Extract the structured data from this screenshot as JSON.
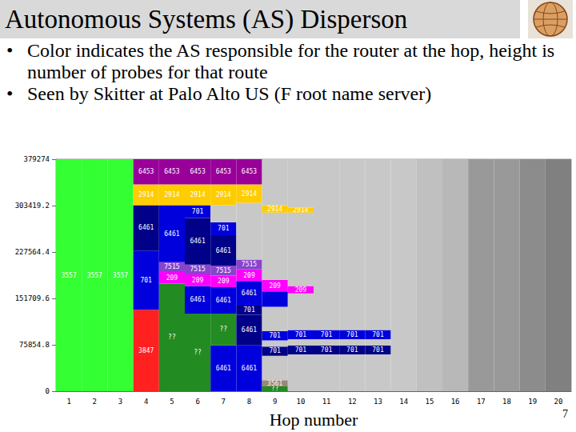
{
  "slide": {
    "title": "Autonomous Systems (AS) Disperson",
    "bullets": [
      "Color indicates the AS responsible for the router at the hop, height is number of probes for that route",
      "Seen by Skitter at Palo Alto US (F root name server)"
    ],
    "page_number": 7
  },
  "chart_data": {
    "type": "bar",
    "stacked": true,
    "grid": false,
    "x_label": "Hop number",
    "categories": [
      1,
      2,
      3,
      4,
      5,
      6,
      7,
      8,
      9,
      10,
      11,
      12,
      13,
      14,
      15,
      16,
      17,
      18,
      19,
      20
    ],
    "ylim": [
      0,
      379274
    ],
    "yticks": [
      0,
      75854.8,
      151709.6,
      227564.4,
      303419.2,
      379274
    ],
    "segments": [
      [
        {
          "label": "3557",
          "value": 379274,
          "color": "#33ff33"
        }
      ],
      [
        {
          "label": "3557",
          "value": 379274,
          "color": "#33ff33"
        }
      ],
      [
        {
          "label": "3557",
          "value": 379274,
          "color": "#33ff33"
        }
      ],
      [
        {
          "label": "3847",
          "value": 133000,
          "color": "#ff2020"
        },
        {
          "label": "701",
          "value": 97000,
          "color": "#0000dd"
        },
        {
          "label": "6461",
          "value": 74000,
          "color": "#000088"
        },
        {
          "label": "2914",
          "value": 34000,
          "color": "#ffcc00"
        },
        {
          "label": "6453",
          "value": 41274,
          "color": "#990099"
        }
      ],
      [
        {
          "label": "??",
          "value": 176000,
          "color": "#228b22"
        },
        {
          "label": "209",
          "value": 19000,
          "color": "#ff00ff"
        },
        {
          "label": "7515",
          "value": 16000,
          "color": "#8844cc"
        },
        {
          "label": "6461",
          "value": 93000,
          "color": "#0000dd"
        },
        {
          "label": "2914",
          "value": 34000,
          "color": "#ffcc00"
        },
        {
          "label": "6453",
          "value": 41274,
          "color": "#990099"
        }
      ],
      [
        {
          "label": "??",
          "value": 127000,
          "color": "#228b22"
        },
        {
          "label": "6461",
          "value": 45000,
          "color": "#0000dd"
        },
        {
          "label": "209",
          "value": 19000,
          "color": "#ff00ff"
        },
        {
          "label": "7515",
          "value": 16000,
          "color": "#8844cc"
        },
        {
          "label": "6461",
          "value": 76000,
          "color": "#000088"
        },
        {
          "label": "701",
          "value": 21000,
          "color": "#0000dd"
        },
        {
          "label": "2914",
          "value": 34000,
          "color": "#ffcc00"
        },
        {
          "label": "6453",
          "value": 41274,
          "color": "#990099"
        }
      ],
      [
        {
          "label": "6461",
          "value": 75000,
          "color": "#0000dd"
        },
        {
          "label": "??",
          "value": 52000,
          "color": "#228b22"
        },
        {
          "label": "6461",
          "value": 43000,
          "color": "#0000dd"
        },
        {
          "label": "209",
          "value": 19000,
          "color": "#ff00ff"
        },
        {
          "label": "7515",
          "value": 16000,
          "color": "#8844cc"
        },
        {
          "label": "6461",
          "value": 50000,
          "color": "#000088"
        },
        {
          "label": "701",
          "value": 21000,
          "color": "#0000dd"
        },
        {
          "value": 28000,
          "color": "#c8c8c8"
        },
        {
          "label": "2914",
          "value": 34000,
          "color": "#ffcc00"
        },
        {
          "label": "6453",
          "value": 41274,
          "color": "#990099"
        }
      ],
      [
        {
          "label": "6461",
          "value": 75000,
          "color": "#0000dd"
        },
        {
          "label": "6461",
          "value": 50000,
          "color": "#000088"
        },
        {
          "label": "701",
          "value": 15000,
          "color": "#000088"
        },
        {
          "label": "6461",
          "value": 40000,
          "color": "#0000dd"
        },
        {
          "label": "209",
          "value": 19000,
          "color": "#ff00ff"
        },
        {
          "label": "7515",
          "value": 16000,
          "color": "#8844cc"
        },
        {
          "value": 93000,
          "color": "#c8c8c8"
        },
        {
          "label": "2914",
          "value": 30000,
          "color": "#ffcc00"
        },
        {
          "label": "6453",
          "value": 41274,
          "color": "#990099"
        }
      ],
      [
        {
          "label": "??",
          "value": 8000,
          "color": "#228b22"
        },
        {
          "label": "3561",
          "value": 10000,
          "color": "#998877"
        },
        {
          "value": 40000,
          "color": "#c8c8c8"
        },
        {
          "label": "701",
          "value": 15000,
          "color": "#000088"
        },
        {
          "value": 10000,
          "color": "#c8c8c8"
        },
        {
          "label": "701",
          "value": 15000,
          "color": "#0000dd"
        },
        {
          "value": 40000,
          "color": "#c8c8c8"
        },
        {
          "value": 25000,
          "color": "#0000dd"
        },
        {
          "label": "209",
          "value": 19000,
          "color": "#ff00ff"
        },
        {
          "value": 110000,
          "color": "#c8c8c8"
        },
        {
          "label": "2914",
          "value": 12000,
          "color": "#ffcc00"
        },
        {
          "value": 75274,
          "color": "#c8c8c8"
        }
      ],
      [
        {
          "value": 60000,
          "color": "#c8c8c8"
        },
        {
          "label": "701",
          "value": 15000,
          "color": "#000088"
        },
        {
          "value": 10000,
          "color": "#c8c8c8"
        },
        {
          "label": "701",
          "value": 15000,
          "color": "#0000dd"
        },
        {
          "value": 60000,
          "color": "#c8c8c8"
        },
        {
          "label": "209",
          "value": 12000,
          "color": "#ff00ff"
        },
        {
          "value": 120000,
          "color": "#c8c8c8"
        },
        {
          "label": "2914",
          "value": 8000,
          "color": "#ffcc00"
        },
        {
          "value": 79274,
          "color": "#c8c8c8"
        }
      ],
      [
        {
          "value": 60000,
          "color": "#c8c8c8"
        },
        {
          "label": "701",
          "value": 15000,
          "color": "#000088"
        },
        {
          "value": 10000,
          "color": "#c8c8c8"
        },
        {
          "label": "701",
          "value": 15000,
          "color": "#0000dd"
        },
        {
          "value": 279274,
          "color": "#c8c8c8"
        }
      ],
      [
        {
          "value": 60000,
          "color": "#c8c8c8"
        },
        {
          "label": "701",
          "value": 15000,
          "color": "#000088"
        },
        {
          "value": 10000,
          "color": "#c8c8c8"
        },
        {
          "label": "701",
          "value": 15000,
          "color": "#0000dd"
        },
        {
          "value": 279274,
          "color": "#c8c8c8"
        }
      ],
      [
        {
          "value": 60000,
          "color": "#c8c8c8"
        },
        {
          "label": "701",
          "value": 15000,
          "color": "#000088"
        },
        {
          "value": 10000,
          "color": "#c8c8c8"
        },
        {
          "label": "701",
          "value": 15000,
          "color": "#0000dd"
        },
        {
          "value": 279274,
          "color": "#c8c8c8"
        }
      ],
      [
        {
          "value": 379274,
          "color": "#c8c8c8"
        }
      ],
      [
        {
          "value": 379274,
          "color": "#c0c0c0"
        }
      ],
      [
        {
          "value": 379274,
          "color": "#b8b8b8"
        }
      ],
      [
        {
          "value": 379274,
          "color": "#999999"
        }
      ],
      [
        {
          "value": 379274,
          "color": "#999999"
        }
      ],
      [
        {
          "value": 379274,
          "color": "#8c8c8c"
        }
      ],
      [
        {
          "value": 379274,
          "color": "#808080"
        }
      ]
    ]
  }
}
